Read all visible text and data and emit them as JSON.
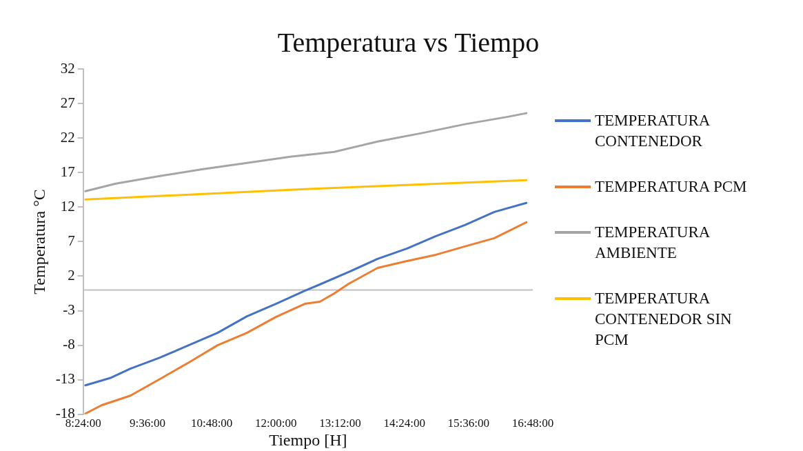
{
  "chart_data": {
    "type": "line",
    "title": "Temperatura vs Tiempo",
    "xlabel": "Tiempo [H]",
    "ylabel": "Temperatura °C",
    "x": [
      8.44,
      8.74,
      8.92,
      9.01,
      9.28,
      9.83,
      10.37,
      10.64,
      10.91,
      11.46,
      12.0,
      12.27,
      12.54,
      12.82,
      13.09,
      13.36,
      13.9,
      14.45,
      14.72,
      14.99,
      15.53,
      16.08,
      16.35,
      16.68
    ],
    "series": [
      {
        "name": "TEMPERATURA CONTENEDOR",
        "color": "#4472c4",
        "values": [
          -13.8,
          null,
          -12.7,
          null,
          -11.4,
          -9.8,
          -8.0,
          null,
          -6.2,
          -3.8,
          -2.0,
          null,
          -0.1,
          0.8,
          null,
          2.6,
          4.5,
          6.0,
          null,
          7.8,
          9.4,
          11.3,
          null,
          12.6
        ]
      },
      {
        "name": "TEMPERATURA PCM",
        "color": "#ed7d31",
        "values": [
          -17.9,
          -16.7,
          null,
          null,
          -15.3,
          -12.9,
          -10.5,
          null,
          -8.0,
          -6.2,
          -3.9,
          null,
          -2.0,
          -1.7,
          -0.5,
          0.9,
          3.2,
          4.2,
          null,
          5.1,
          6.3,
          7.5,
          null,
          9.8
        ]
      },
      {
        "name": "TEMPERATURA AMBIENTE",
        "color": "#a5a5a5",
        "values": [
          14.3,
          null,
          null,
          15.4,
          null,
          16.5,
          null,
          17.5,
          null,
          18.4,
          null,
          19.3,
          null,
          null,
          20.0,
          null,
          21.5,
          null,
          22.7,
          null,
          24.0,
          null,
          25.1,
          25.6
        ]
      },
      {
        "name": "TEMPERATURA CONTENEDOR SIN PCM",
        "color": "#ffc000",
        "values": [
          13.1,
          null,
          null,
          null,
          null,
          null,
          null,
          null,
          null,
          null,
          null,
          null,
          14.6,
          null,
          null,
          null,
          null,
          15.2,
          null,
          null,
          null,
          null,
          null,
          15.9
        ]
      }
    ],
    "xlim": [
      8.4,
      16.8
    ],
    "xticks": [
      {
        "value": 8.4,
        "label": "8:24:00"
      },
      {
        "value": 9.6,
        "label": "9:36:00"
      },
      {
        "value": 10.8,
        "label": "10:48:00"
      },
      {
        "value": 12.0,
        "label": "12:00:00"
      },
      {
        "value": 13.2,
        "label": "13:12:00"
      },
      {
        "value": 14.4,
        "label": "14:24:00"
      },
      {
        "value": 15.6,
        "label": "15:36:00"
      },
      {
        "value": 16.8,
        "label": "16:48:00"
      }
    ],
    "ylim": [
      -18,
      32
    ],
    "yticks": [
      -18,
      -13,
      -8,
      -3,
      2,
      7,
      12,
      17,
      22,
      27,
      32
    ],
    "ref_lines": [
      {
        "axis": "y",
        "value": 0,
        "color": "#bfbfbf"
      }
    ],
    "grid": false,
    "legend": "right",
    "marker": "none",
    "line_style": "solid"
  }
}
